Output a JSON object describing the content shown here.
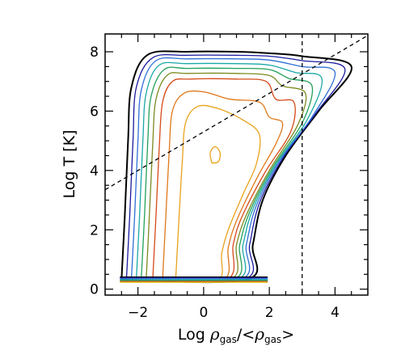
{
  "chart_data": {
    "type": "contour",
    "title": "",
    "xlabel": {
      "prefix": "Log ",
      "rho": "ρ",
      "sub": "gas",
      "slash_open": "/<",
      "close": ">"
    },
    "ylabel": "Log T [K]",
    "xlim": [
      -3.0,
      5.0
    ],
    "ylim": [
      -0.2,
      8.6
    ],
    "x_ticks": [
      -2,
      0,
      2,
      4
    ],
    "x_tick_labels": [
      "−2",
      "0",
      "2",
      "4"
    ],
    "y_ticks": [
      0,
      2,
      4,
      6,
      8
    ],
    "y_tick_labels": [
      "0",
      "2",
      "4",
      "6",
      "8"
    ],
    "grid": false,
    "reference_lines": [
      {
        "kind": "dashed-vertical",
        "x": 3.0
      },
      {
        "kind": "dashed-line",
        "x0": -3.0,
        "y0": 3.35,
        "x1": 5.0,
        "y1": 8.55
      }
    ],
    "contour_levels": [
      {
        "color": "#000000",
        "points": [
          [
            -2.5,
            0.32
          ],
          [
            -2.4,
            2.5
          ],
          [
            -2.3,
            5.0
          ],
          [
            -2.2,
            6.8
          ],
          [
            -1.7,
            7.9
          ],
          [
            -0.5,
            8.0
          ],
          [
            1.0,
            8.0
          ],
          [
            2.0,
            7.95
          ],
          [
            3.0,
            7.85
          ],
          [
            4.5,
            7.5
          ],
          [
            3.5,
            6.0
          ],
          [
            2.5,
            4.5
          ],
          [
            1.8,
            3.0
          ],
          [
            1.5,
            1.5
          ],
          [
            1.3,
            0.32
          ],
          [
            -2.5,
            0.32
          ]
        ]
      },
      {
        "color": "#1a1aa0",
        "points": [
          [
            -2.35,
            0.32
          ],
          [
            -2.25,
            2.5
          ],
          [
            -2.15,
            5.0
          ],
          [
            -2.05,
            6.8
          ],
          [
            -1.55,
            7.8
          ],
          [
            -0.5,
            7.88
          ],
          [
            1.0,
            7.88
          ],
          [
            2.0,
            7.85
          ],
          [
            3.0,
            7.7
          ],
          [
            4.3,
            7.42
          ],
          [
            3.4,
            5.9
          ],
          [
            2.4,
            4.4
          ],
          [
            1.7,
            2.9
          ],
          [
            1.4,
            1.5
          ],
          [
            1.2,
            0.32
          ],
          [
            -2.35,
            0.32
          ]
        ]
      },
      {
        "color": "#2e6fd6",
        "points": [
          [
            -2.2,
            0.32
          ],
          [
            -2.1,
            2.5
          ],
          [
            -2.0,
            5.0
          ],
          [
            -1.9,
            6.7
          ],
          [
            -1.45,
            7.7
          ],
          [
            -0.5,
            7.76
          ],
          [
            1.0,
            7.76
          ],
          [
            2.0,
            7.72
          ],
          [
            3.0,
            7.5
          ],
          [
            4.0,
            7.3
          ],
          [
            3.3,
            5.8
          ],
          [
            2.3,
            4.3
          ],
          [
            1.6,
            2.8
          ],
          [
            1.3,
            1.5
          ],
          [
            1.1,
            0.32
          ],
          [
            -2.2,
            0.32
          ]
        ]
      },
      {
        "color": "#1aa7a7",
        "points": [
          [
            -2.05,
            0.32
          ],
          [
            -1.95,
            2.5
          ],
          [
            -1.85,
            5.0
          ],
          [
            -1.75,
            6.6
          ],
          [
            -1.35,
            7.55
          ],
          [
            -0.5,
            7.6
          ],
          [
            1.0,
            7.6
          ],
          [
            2.0,
            7.55
          ],
          [
            2.8,
            7.3
          ],
          [
            3.6,
            7.1
          ],
          [
            3.15,
            5.7
          ],
          [
            2.2,
            4.2
          ],
          [
            1.5,
            2.7
          ],
          [
            1.2,
            1.5
          ],
          [
            1.0,
            0.32
          ],
          [
            -2.05,
            0.32
          ]
        ]
      },
      {
        "color": "#22a05a",
        "points": [
          [
            -1.9,
            0.32
          ],
          [
            -1.8,
            2.5
          ],
          [
            -1.7,
            5.0
          ],
          [
            -1.6,
            6.5
          ],
          [
            -1.2,
            7.4
          ],
          [
            -0.5,
            7.44
          ],
          [
            1.0,
            7.44
          ],
          [
            2.0,
            7.4
          ],
          [
            2.6,
            7.1
          ],
          [
            3.3,
            6.85
          ],
          [
            3.0,
            5.6
          ],
          [
            2.1,
            4.1
          ],
          [
            1.4,
            2.6
          ],
          [
            1.1,
            1.5
          ],
          [
            0.9,
            0.32
          ],
          [
            -1.9,
            0.32
          ]
        ]
      },
      {
        "color": "#7c8a20",
        "points": [
          [
            -1.75,
            0.32
          ],
          [
            -1.65,
            2.5
          ],
          [
            -1.55,
            4.9
          ],
          [
            -1.45,
            6.4
          ],
          [
            -1.1,
            7.22
          ],
          [
            -0.5,
            7.27
          ],
          [
            1.0,
            7.27
          ],
          [
            2.0,
            7.2
          ],
          [
            2.4,
            6.85
          ],
          [
            3.1,
            6.6
          ],
          [
            2.85,
            5.5
          ],
          [
            2.0,
            4.0
          ],
          [
            1.3,
            2.5
          ],
          [
            1.0,
            1.5
          ],
          [
            0.8,
            0.32
          ],
          [
            -1.75,
            0.32
          ]
        ]
      },
      {
        "color": "#d64a1a",
        "points": [
          [
            -1.55,
            0.32
          ],
          [
            -1.45,
            2.5
          ],
          [
            -1.35,
            4.8
          ],
          [
            -1.25,
            6.3
          ],
          [
            -0.95,
            7.0
          ],
          [
            -0.4,
            7.08
          ],
          [
            1.0,
            7.08
          ],
          [
            1.9,
            7.0
          ],
          [
            2.2,
            6.4
          ],
          [
            2.75,
            6.3
          ],
          [
            2.65,
            5.3
          ],
          [
            1.85,
            3.9
          ],
          [
            1.15,
            2.4
          ],
          [
            0.9,
            1.5
          ],
          [
            0.7,
            0.32
          ],
          [
            -1.55,
            0.32
          ]
        ]
      },
      {
        "color": "#e0781a",
        "points": [
          [
            -1.25,
            0.32
          ],
          [
            -1.15,
            2.5
          ],
          [
            -1.05,
            4.6
          ],
          [
            -0.95,
            6.0
          ],
          [
            -0.6,
            6.6
          ],
          [
            0.0,
            6.65
          ],
          [
            0.8,
            6.4
          ],
          [
            1.7,
            6.3
          ],
          [
            2.0,
            5.8
          ],
          [
            2.4,
            5.6
          ],
          [
            2.2,
            4.9
          ],
          [
            1.6,
            3.7
          ],
          [
            1.0,
            2.3
          ],
          [
            0.75,
            1.4
          ],
          [
            0.6,
            0.32
          ],
          [
            -1.25,
            0.32
          ]
        ]
      },
      {
        "color": "#e8a21a",
        "points": [
          [
            -0.85,
            0.32
          ],
          [
            -0.75,
            2.4
          ],
          [
            -0.65,
            4.3
          ],
          [
            -0.55,
            5.6
          ],
          [
            -0.2,
            6.15
          ],
          [
            0.4,
            6.1
          ],
          [
            1.2,
            5.7
          ],
          [
            1.7,
            5.2
          ],
          [
            1.6,
            4.2
          ],
          [
            1.2,
            3.2
          ],
          [
            0.75,
            2.0
          ],
          [
            0.55,
            1.2
          ],
          [
            0.45,
            0.32
          ],
          [
            -0.85,
            0.32
          ]
        ]
      },
      {
        "color": "#e8a21a",
        "points": [
          [
            0.25,
            4.25
          ],
          [
            0.2,
            4.6
          ],
          [
            0.35,
            4.8
          ],
          [
            0.5,
            4.6
          ],
          [
            0.45,
            4.3
          ],
          [
            0.25,
            4.25
          ]
        ]
      }
    ],
    "floor_band": {
      "x": [
        -2.55,
        1.95
      ],
      "y": 0.32,
      "colors": [
        "#000000",
        "#1a1aa0",
        "#2e6fd6",
        "#1aa7a7",
        "#22a05a",
        "#d64a1a",
        "#e8c81a"
      ]
    }
  }
}
